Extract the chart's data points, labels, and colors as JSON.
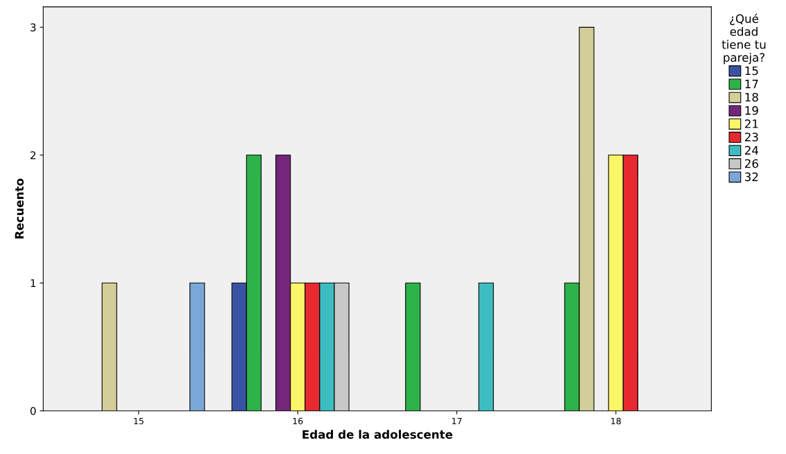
{
  "chart_data": {
    "type": "bar",
    "xlabel": "Edad de la adolescente",
    "ylabel": "Recuento",
    "legend_title": "¿Qué\nedad\ntiene tu\npareja?",
    "categories": [
      "15",
      "16",
      "17",
      "18"
    ],
    "series": [
      {
        "name": "15",
        "color": "#3953a4",
        "values": [
          null,
          1,
          null,
          null
        ]
      },
      {
        "name": "17",
        "color": "#2db34a",
        "values": [
          null,
          2,
          1,
          1
        ]
      },
      {
        "name": "18",
        "color": "#d3ce97",
        "values": [
          1,
          null,
          null,
          3
        ]
      },
      {
        "name": "19",
        "color": "#74267a",
        "values": [
          null,
          2,
          null,
          null
        ]
      },
      {
        "name": "21",
        "color": "#fbf568",
        "values": [
          null,
          1,
          null,
          2
        ]
      },
      {
        "name": "23",
        "color": "#e62a2f",
        "values": [
          null,
          1,
          null,
          2
        ]
      },
      {
        "name": "24",
        "color": "#3dbdc1",
        "values": [
          null,
          1,
          1,
          null
        ]
      },
      {
        "name": "26",
        "color": "#c8c8c8",
        "values": [
          null,
          1,
          null,
          null
        ]
      },
      {
        "name": "32",
        "color": "#79a8d8",
        "values": [
          1,
          null,
          null,
          null
        ]
      }
    ],
    "ylim": [
      0,
      3.16
    ],
    "yticks": [
      0,
      1,
      2,
      3
    ],
    "grid": false,
    "legend": "right"
  }
}
